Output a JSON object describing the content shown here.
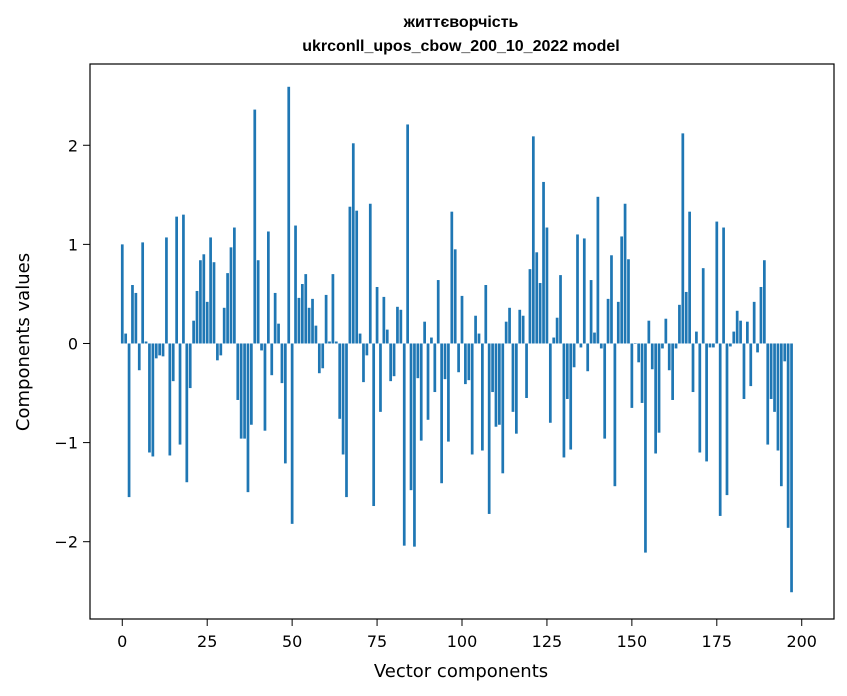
{
  "chart_data": {
    "type": "bar",
    "title_line1": "життєворчість",
    "title_line2": "ukrconll_upos_cbow_200_10_2022 model",
    "xlabel": "Vector components",
    "ylabel": "Components values",
    "xlim": [
      -9.5,
      209.5
    ],
    "ylim": [
      -2.78,
      2.82
    ],
    "xticks": [
      0,
      25,
      50,
      75,
      100,
      125,
      150,
      175,
      200
    ],
    "xtick_labels": [
      "0",
      "25",
      "50",
      "75",
      "100",
      "125",
      "150",
      "175",
      "200"
    ],
    "yticks": [
      -2,
      -1,
      0,
      1,
      2
    ],
    "ytick_labels": [
      "−2",
      "−1",
      "0",
      "1",
      "2"
    ],
    "grid": false,
    "bar_color": "#1f77b4",
    "values": [
      1.0,
      0.1,
      -1.55,
      0.59,
      0.51,
      -0.27,
      1.02,
      0.02,
      -1.1,
      -1.14,
      -0.15,
      -0.12,
      -0.13,
      1.07,
      -1.13,
      -0.38,
      1.28,
      -1.02,
      1.3,
      -1.4,
      -0.45,
      0.23,
      0.53,
      0.84,
      0.9,
      0.42,
      1.07,
      0.82,
      -0.17,
      -0.12,
      0.36,
      0.71,
      0.97,
      1.17,
      -0.57,
      -0.96,
      -0.96,
      -1.5,
      -0.82,
      2.36,
      0.84,
      -0.07,
      -0.88,
      1.13,
      -0.32,
      0.51,
      0.2,
      -0.4,
      -1.21,
      2.59,
      -1.82,
      1.19,
      0.46,
      0.6,
      0.7,
      0.36,
      0.45,
      0.18,
      -0.3,
      -0.25,
      0.49,
      0.02,
      0.7,
      0.02,
      -0.76,
      -1.12,
      -1.55,
      1.38,
      2.02,
      1.34,
      0.1,
      -0.39,
      -0.12,
      1.41,
      -1.64,
      0.57,
      -0.69,
      0.47,
      0.14,
      -0.38,
      -0.33,
      0.37,
      0.34,
      -2.04,
      2.21,
      -1.48,
      -2.05,
      -0.35,
      -0.98,
      0.22,
      -0.77,
      0.06,
      -0.49,
      0.64,
      -1.41,
      -0.36,
      -0.99,
      1.33,
      0.95,
      -0.29,
      0.48,
      -0.41,
      -0.37,
      -1.12,
      0.28,
      0.1,
      -1.08,
      0.59,
      -1.72,
      -0.49,
      -0.84,
      -0.82,
      -1.31,
      0.22,
      0.36,
      -0.69,
      -0.91,
      0.34,
      0.28,
      -0.55,
      0.75,
      2.09,
      0.92,
      0.61,
      1.63,
      1.17,
      -0.8,
      0.06,
      0.26,
      0.69,
      -1.15,
      -0.56,
      -1.07,
      -0.24,
      1.1,
      -0.04,
      1.06,
      -0.28,
      0.64,
      0.11,
      1.48,
      -0.05,
      -0.96,
      0.45,
      0.89,
      -1.44,
      0.42,
      1.08,
      1.41,
      0.85,
      -0.65,
      0.0,
      -0.19,
      -0.6,
      -2.11,
      0.23,
      -0.26,
      -1.11,
      -0.9,
      -0.05,
      0.25,
      -0.27,
      -0.57,
      -0.05,
      0.39,
      2.12,
      0.52,
      1.33,
      -0.49,
      0.12,
      -1.1,
      0.76,
      -1.19,
      -0.04,
      -0.04,
      1.23,
      -1.74,
      1.17,
      -1.53,
      -0.03,
      0.12,
      0.33,
      0.23,
      -0.56,
      0.22,
      -0.43,
      0.42,
      -0.09,
      0.57,
      0.84,
      -1.02,
      -0.56,
      -0.69,
      -1.08,
      -1.44,
      -0.18,
      -1.86,
      -2.51
    ]
  }
}
